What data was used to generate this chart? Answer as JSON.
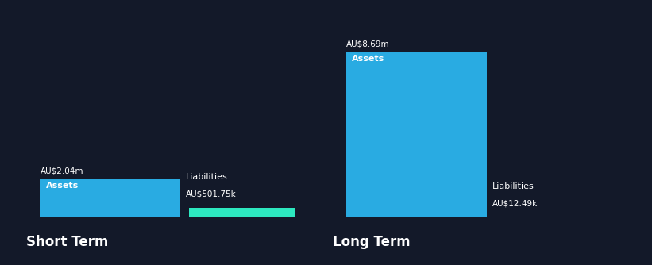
{
  "background_color": "#131929",
  "text_color": "#ffffff",
  "short_term": {
    "assets_value": 2.04,
    "assets_label": "AU$2.04m",
    "assets_color": "#29abe2",
    "liabilities_value": 0.50175,
    "liabilities_label": "AU$501.75k",
    "liabilities_color": "#2de8c0",
    "label": "Short Term"
  },
  "long_term": {
    "assets_value": 8.69,
    "assets_label": "AU$8.69m",
    "assets_color": "#29abe2",
    "liabilities_value": 0.01249,
    "liabilities_label": "AU$12.49k",
    "liabilities_color": "#29abe2",
    "label": "Long Term"
  },
  "max_value": 8.69,
  "label_fontsize": 7.5,
  "section_fontsize": 12,
  "inner_fontsize": 8,
  "baseline_color": "#3a3f55"
}
